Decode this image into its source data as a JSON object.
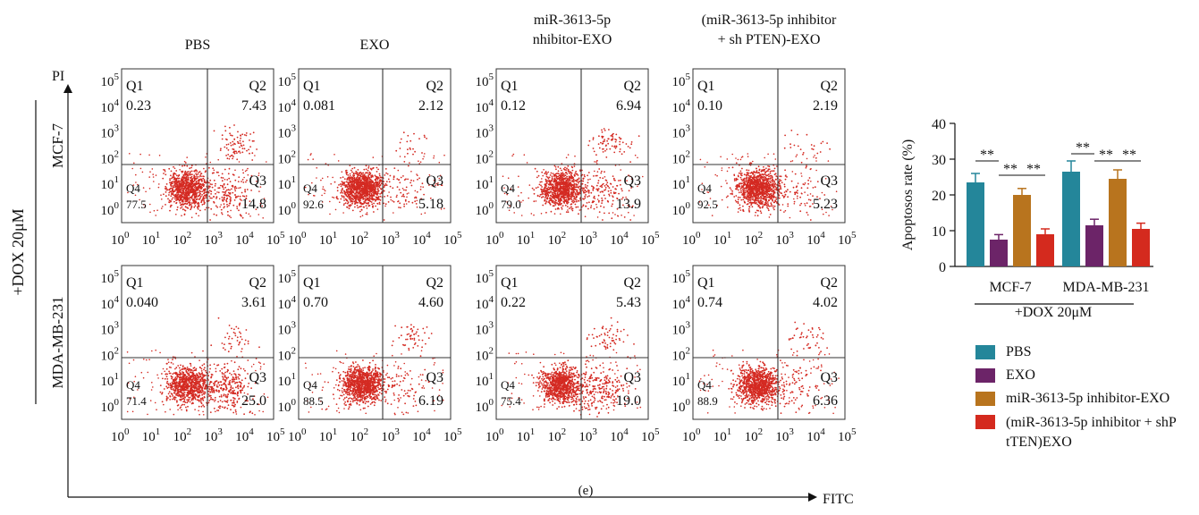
{
  "figure": {
    "panel_label": "(e)",
    "treatment_label": "+DOX 20μM",
    "y_channel": "PI",
    "x_channel": "FITC",
    "dot_color": "#d42a22"
  },
  "columns": [
    {
      "title_lines": [
        "PBS"
      ]
    },
    {
      "title_lines": [
        "EXO"
      ]
    },
    {
      "title_lines": [
        "miR-3613-5p",
        "nhibitor-EXO"
      ]
    },
    {
      "title_lines": [
        "(miR-3613-5p inhibitor",
        "+ sh PTEN)-EXO"
      ]
    }
  ],
  "rows": [
    {
      "cell_line": "MCF-7"
    },
    {
      "cell_line": "MDA-MB-231"
    }
  ],
  "flow_plots": [
    [
      {
        "q1": "0.23",
        "q2": "7.43",
        "q3": "14.8",
        "q4": "77.5"
      },
      {
        "q1": "0.081",
        "q2": "2.12",
        "q3": "5.18",
        "q4": "92.6"
      },
      {
        "q1": "0.12",
        "q2": "6.94",
        "q3": "13.9",
        "q4": "79.0"
      },
      {
        "q1": "0.10",
        "q2": "2.19",
        "q3": "5.23",
        "q4": "92.5"
      }
    ],
    [
      {
        "q1": "0.040",
        "q2": "3.61",
        "q3": "25.0",
        "q4": "71.4"
      },
      {
        "q1": "0.70",
        "q2": "4.60",
        "q3": "6.19",
        "q4": "88.5"
      },
      {
        "q1": "0.22",
        "q2": "5.43",
        "q3": "19.0",
        "q4": "75.4"
      },
      {
        "q1": "0.74",
        "q2": "4.02",
        "q3": "6.36",
        "q4": "88.9"
      }
    ]
  ],
  "quadrant_names": [
    "Q1",
    "Q2",
    "Q3",
    "Q4"
  ],
  "axis_ticks": [
    {
      "base": "10",
      "exp": "0"
    },
    {
      "base": "10",
      "exp": "1"
    },
    {
      "base": "10",
      "exp": "2"
    },
    {
      "base": "10",
      "exp": "3"
    },
    {
      "base": "10",
      "exp": "4"
    },
    {
      "base": "10",
      "exp": "5"
    }
  ],
  "chart_data": {
    "type": "bar",
    "ylabel": "Apoptosos rate (%)",
    "xlabel": "+DOX 20μM",
    "ylim": [
      0,
      40
    ],
    "yticks": [
      0,
      10,
      20,
      30,
      40
    ],
    "categories": [
      "MCF-7",
      "MDA-MB-231"
    ],
    "series": [
      {
        "name": "PBS",
        "color": "#24869a",
        "values": [
          23.5,
          26.5
        ],
        "errors": [
          2.5,
          3.0
        ]
      },
      {
        "name": "EXO",
        "color": "#6c2468",
        "values": [
          7.5,
          11.5
        ],
        "errors": [
          1.4,
          1.7
        ]
      },
      {
        "name": "miR-3613-5p inhibitor-EXO",
        "color": "#b8741e",
        "values": [
          20.0,
          24.5
        ],
        "errors": [
          1.8,
          2.5
        ]
      },
      {
        "name": "(miR-3613-5p inhibitor + shP tTEN)EXO",
        "color": "#d42a1e",
        "values": [
          9.0,
          10.5
        ],
        "errors": [
          1.5,
          1.6
        ]
      }
    ],
    "significance": [
      "**",
      "**",
      "**",
      "**",
      "**",
      "**"
    ]
  }
}
